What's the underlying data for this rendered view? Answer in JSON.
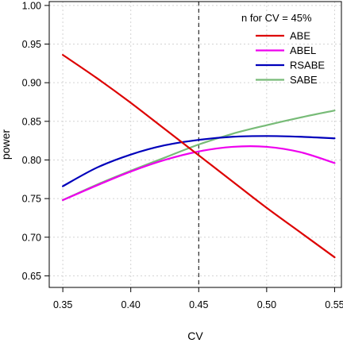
{
  "chart_data": {
    "type": "line",
    "xlabel": "CV",
    "ylabel": "power",
    "xlim": [
      0.34,
      0.555
    ],
    "ylim": [
      0.635,
      1.005
    ],
    "x_ticks": [
      "0.35",
      "0.40",
      "0.45",
      "0.50",
      "0.55"
    ],
    "y_ticks": [
      "0.65",
      "0.70",
      "0.75",
      "0.80",
      "0.85",
      "0.90",
      "0.95",
      "1.00"
    ],
    "grid": true,
    "reference_line": {
      "x": 0.45,
      "style": "dashed"
    },
    "legend": {
      "title": "n for CV = 45%",
      "position": "top-right",
      "entries": [
        "ABE",
        "ABEL",
        "RSABE",
        "SABE"
      ]
    },
    "x": [
      0.35,
      0.375,
      0.4,
      0.425,
      0.45,
      0.475,
      0.5,
      0.525,
      0.55
    ],
    "series": [
      {
        "name": "ABE",
        "color": "#dd0000",
        "values": [
          0.936,
          0.906,
          0.874,
          0.84,
          0.806,
          0.772,
          0.738,
          0.706,
          0.674
        ]
      },
      {
        "name": "ABEL",
        "color": "#ee00ee",
        "values": [
          0.748,
          0.767,
          0.785,
          0.8,
          0.811,
          0.817,
          0.817,
          0.81,
          0.796
        ]
      },
      {
        "name": "RSABE",
        "color": "#0000bb",
        "values": [
          0.766,
          0.79,
          0.807,
          0.819,
          0.826,
          0.83,
          0.831,
          0.83,
          0.828
        ]
      },
      {
        "name": "SABE",
        "color": "#77bb77",
        "values": [
          0.748,
          0.768,
          0.786,
          0.803,
          0.82,
          0.834,
          0.845,
          0.855,
          0.864
        ]
      }
    ]
  }
}
